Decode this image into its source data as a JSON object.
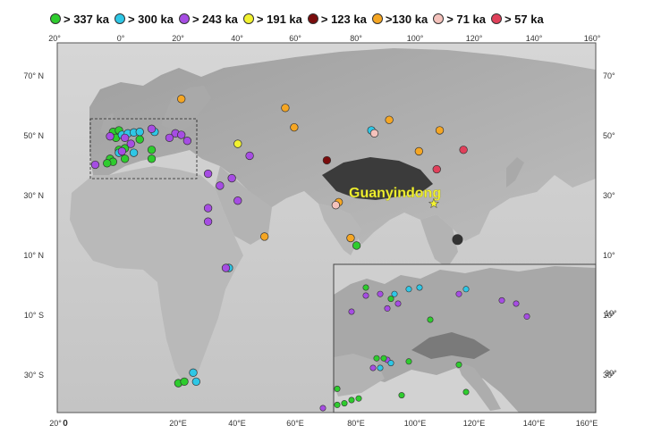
{
  "legend": [
    {
      "label": "> 337 ka",
      "color": "#2ecc2e"
    },
    {
      "label": "> 300 ka",
      "color": "#2ec7e6"
    },
    {
      "label": "> 243 ka",
      "color": "#a64de3"
    },
    {
      "label": "> 191 ka",
      "color": "#f2f230"
    },
    {
      "label": "> 123 ka",
      "color": "#7a0c0c"
    },
    {
      "label": ">130 ka",
      "color": "#f5a623"
    },
    {
      "label": "> 71 ka",
      "color": "#f4c2bc"
    },
    {
      "label": "> 57 ka",
      "color": "#e0405a"
    }
  ],
  "axes": {
    "top_lon_labels": [
      "20°",
      "0°",
      "20°",
      "40°",
      "60°",
      "80°",
      "100°",
      "120°",
      "140°",
      "160°"
    ],
    "bottom_lon_labels": [
      "20°",
      "0",
      "20°E",
      "40°E",
      "60°E",
      "80°E",
      "100°E",
      "120°E",
      "140°E",
      "160°E"
    ],
    "left_lat_labels": [
      "70° N",
      "50° N",
      "30° N",
      "10° N",
      "10° S",
      "30° S"
    ],
    "right_lat_labels": [
      "70°",
      "50°",
      "30°",
      "10°",
      "10°",
      "30°"
    ],
    "inset_lat_labels": [
      "10°",
      "30°"
    ]
  },
  "site_label": {
    "text": "Guanyindong",
    "color": "#f2f230"
  },
  "sites": {
    "main": [
      {
        "lon": -2,
        "lat": 51,
        "age": "> 337 ka"
      },
      {
        "lon": 0,
        "lat": 51.5,
        "age": "> 337 ka"
      },
      {
        "lon": -1,
        "lat": 49,
        "age": "> 337 ka"
      },
      {
        "lon": 0,
        "lat": 45,
        "age": "> 337 ka"
      },
      {
        "lon": -3,
        "lat": 42,
        "age": "> 337 ka"
      },
      {
        "lon": -2,
        "lat": 41,
        "age": "> 337 ka"
      },
      {
        "lon": -4,
        "lat": 40.5,
        "age": "> 337 ka"
      },
      {
        "lon": 2,
        "lat": 42,
        "age": "> 337 ka"
      },
      {
        "lon": 7,
        "lat": 48.5,
        "age": "> 337 ka"
      },
      {
        "lon": 11,
        "lat": 45,
        "age": "> 337 ka"
      },
      {
        "lon": 11,
        "lat": 42,
        "age": "> 337 ka"
      },
      {
        "lon": 2,
        "lat": 45.5,
        "age": "> 337 ka"
      },
      {
        "lon": 80,
        "lat": 13,
        "age": "> 337 ka"
      },
      {
        "lon": 20,
        "lat": -33,
        "age": "> 337 ka"
      },
      {
        "lon": 22,
        "lat": -32.5,
        "age": "> 337 ka"
      },
      {
        "lon": 1,
        "lat": 50,
        "age": "> 300 ka"
      },
      {
        "lon": 3,
        "lat": 50.5,
        "age": "> 300 ka"
      },
      {
        "lon": 5,
        "lat": 50.8,
        "age": "> 300 ka"
      },
      {
        "lon": 7,
        "lat": 51,
        "age": "> 300 ka"
      },
      {
        "lon": 12,
        "lat": 51,
        "age": "> 300 ka"
      },
      {
        "lon": 5,
        "lat": 44,
        "age": "> 300 ka"
      },
      {
        "lon": 0,
        "lat": 44,
        "age": "> 300 ka"
      },
      {
        "lon": 85,
        "lat": 51.5,
        "age": "> 300 ka"
      },
      {
        "lon": 37,
        "lat": 5.5,
        "age": "> 300 ka"
      },
      {
        "lon": 25,
        "lat": -29.5,
        "age": "> 300 ka"
      },
      {
        "lon": 26,
        "lat": -32.5,
        "age": "> 300 ka"
      },
      {
        "lon": -3,
        "lat": 49.5,
        "age": "> 243 ka"
      },
      {
        "lon": 2,
        "lat": 49,
        "age": "> 243 ka"
      },
      {
        "lon": 4,
        "lat": 47,
        "age": "> 243 ka"
      },
      {
        "lon": 11,
        "lat": 52,
        "age": "> 243 ka"
      },
      {
        "lon": 19,
        "lat": 50.5,
        "age": "> 243 ka"
      },
      {
        "lon": 21,
        "lat": 50,
        "age": "> 243 ka"
      },
      {
        "lon": 23,
        "lat": 48,
        "age": "> 243 ka"
      },
      {
        "lon": 17,
        "lat": 49,
        "age": "> 243 ka"
      },
      {
        "lon": -8,
        "lat": 40,
        "age": "> 243 ka"
      },
      {
        "lon": 1,
        "lat": 44.5,
        "age": "> 243 ka"
      },
      {
        "lon": 30,
        "lat": 37,
        "age": "> 243 ka"
      },
      {
        "lon": 34,
        "lat": 33,
        "age": "> 243 ka"
      },
      {
        "lon": 38,
        "lat": 35.5,
        "age": "> 243 ka"
      },
      {
        "lon": 44,
        "lat": 43,
        "age": "> 243 ka"
      },
      {
        "lon": 40,
        "lat": 28,
        "age": "> 243 ka"
      },
      {
        "lon": 30,
        "lat": 25.5,
        "age": "> 243 ka"
      },
      {
        "lon": 30,
        "lat": 21,
        "age": "> 243 ka"
      },
      {
        "lon": 36,
        "lat": 5.5,
        "age": "> 243 ka"
      },
      {
        "lon": 40,
        "lat": 47,
        "age": "> 191 ka"
      },
      {
        "lon": 70,
        "lat": 41.5,
        "age": "> 123 ka"
      },
      {
        "lon": 21,
        "lat": 62,
        "age": ">130 ka"
      },
      {
        "lon": 56,
        "lat": 59,
        "age": ">130 ka"
      },
      {
        "lon": 59,
        "lat": 52.5,
        "age": ">130 ka"
      },
      {
        "lon": 91,
        "lat": 55,
        "age": ">130 ka"
      },
      {
        "lon": 108,
        "lat": 51.5,
        "age": ">130 ka"
      },
      {
        "lon": 101,
        "lat": 44.5,
        "age": ">130 ka"
      },
      {
        "lon": 49,
        "lat": 16,
        "age": ">130 ka"
      },
      {
        "lon": 74,
        "lat": 27.5,
        "age": ">130 ka"
      },
      {
        "lon": 78,
        "lat": 15.5,
        "age": ">130 ka"
      },
      {
        "lon": 86,
        "lat": 50.5,
        "age": "> 71 ka"
      },
      {
        "lon": 73,
        "lat": 26.5,
        "age": "> 71 ka"
      },
      {
        "lon": 116,
        "lat": 45,
        "age": "> 57 ka"
      },
      {
        "lon": 107,
        "lat": 38.5,
        "age": "> 57 ka"
      }
    ],
    "inset": [
      {
        "lon": -4,
        "lat": 48.5,
        "age": "> 243 ka"
      },
      {
        "lon": -2,
        "lat": 49.5,
        "age": "> 243 ka"
      },
      {
        "lon": 0,
        "lat": 49.6,
        "age": "> 243 ka"
      },
      {
        "lon": 1,
        "lat": 48.7,
        "age": "> 243 ka"
      },
      {
        "lon": 2.5,
        "lat": 49.0,
        "age": "> 243 ka"
      },
      {
        "lon": 11,
        "lat": 49.6,
        "age": "> 243 ka"
      },
      {
        "lon": 17,
        "lat": 49.2,
        "age": "> 243 ka"
      },
      {
        "lon": 19,
        "lat": 49.0,
        "age": "> 243 ka"
      },
      {
        "lon": 20.5,
        "lat": 48.2,
        "age": "> 243 ka"
      },
      {
        "lon": 1,
        "lat": 45.5,
        "age": "> 243 ka"
      },
      {
        "lon": -1,
        "lat": 45.0,
        "age": "> 243 ka"
      },
      {
        "lon": -8,
        "lat": 42.5,
        "age": "> 243 ka"
      },
      {
        "lon": -2,
        "lat": 50.0,
        "age": "> 337 ka"
      },
      {
        "lon": 1.5,
        "lat": 49.3,
        "age": "> 337 ka"
      },
      {
        "lon": 7,
        "lat": 48.0,
        "age": "> 337 ka"
      },
      {
        "lon": -0.5,
        "lat": 45.6,
        "age": "> 337 ka"
      },
      {
        "lon": 0.5,
        "lat": 45.6,
        "age": "> 337 ka"
      },
      {
        "lon": 4,
        "lat": 45.4,
        "age": "> 337 ka"
      },
      {
        "lon": 11,
        "lat": 45.2,
        "age": "> 337 ka"
      },
      {
        "lon": -6,
        "lat": 43.7,
        "age": "> 337 ka"
      },
      {
        "lon": -5,
        "lat": 42.8,
        "age": "> 337 ka"
      },
      {
        "lon": -4,
        "lat": 43.0,
        "age": "> 337 ka"
      },
      {
        "lon": -3,
        "lat": 43.1,
        "age": "> 337 ka"
      },
      {
        "lon": -6,
        "lat": 42.7,
        "age": "> 337 ka"
      },
      {
        "lon": 3,
        "lat": 43.3,
        "age": "> 337 ka"
      },
      {
        "lon": 12,
        "lat": 43.5,
        "age": "> 337 ka"
      },
      {
        "lon": 2,
        "lat": 49.6,
        "age": "> 300 ka"
      },
      {
        "lon": 4,
        "lat": 49.9,
        "age": "> 300 ka"
      },
      {
        "lon": 5.5,
        "lat": 50.0,
        "age": "> 300 ka"
      },
      {
        "lon": 12,
        "lat": 49.9,
        "age": "> 300 ka"
      },
      {
        "lon": 1.5,
        "lat": 45.3,
        "age": "> 300 ka"
      },
      {
        "lon": 0,
        "lat": 45.0,
        "age": "> 300 ka"
      }
    ],
    "guanyindong": {
      "lon": 106,
      "lat": 27
    }
  },
  "markers": {
    "large_dark_dot": {
      "lon": 114,
      "lat": 15
    }
  }
}
